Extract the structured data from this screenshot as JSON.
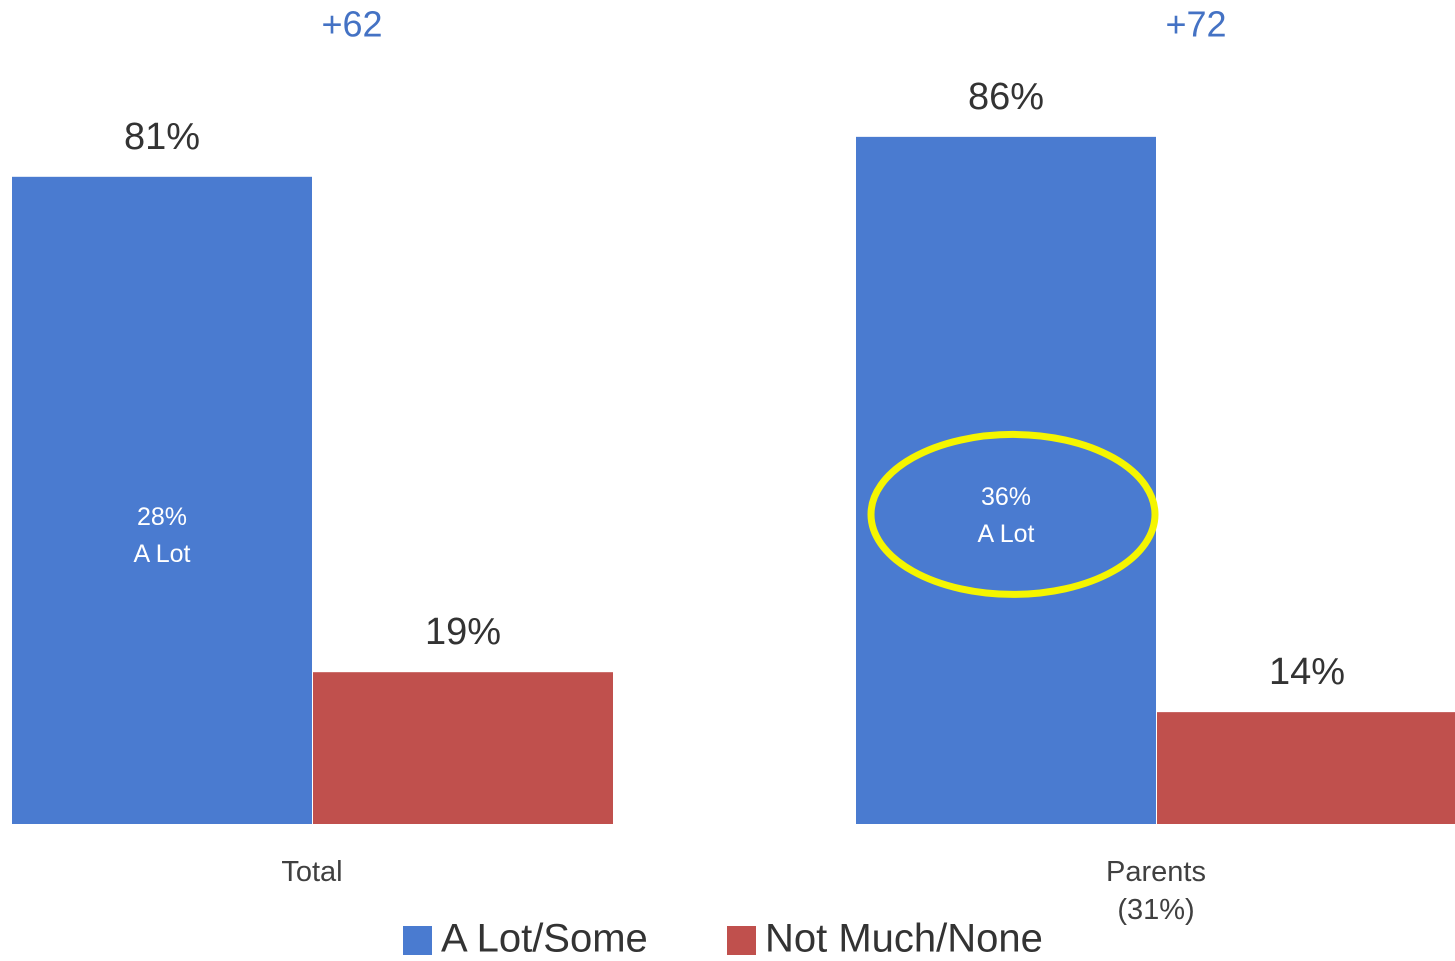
{
  "chart_data": {
    "type": "bar",
    "categories": [
      "Total",
      "Parents (31%)"
    ],
    "series": [
      {
        "name": "A Lot/Some",
        "color": "#4a7bd0",
        "values": [
          81,
          86
        ],
        "value_labels": [
          "81%",
          "86%"
        ],
        "inner_labels": [
          "28%\nA Lot",
          "36%\nA Lot"
        ]
      },
      {
        "name": "Not Much/None",
        "color": "#c0504d",
        "values": [
          19,
          14
        ],
        "value_labels": [
          "19%",
          "14%"
        ]
      }
    ],
    "differences": [
      "+62",
      "+72"
    ],
    "difference_color": "#4472c4",
    "highlight": {
      "index": 1,
      "color": "#f5f500"
    },
    "ylim": [
      0,
      100
    ]
  }
}
